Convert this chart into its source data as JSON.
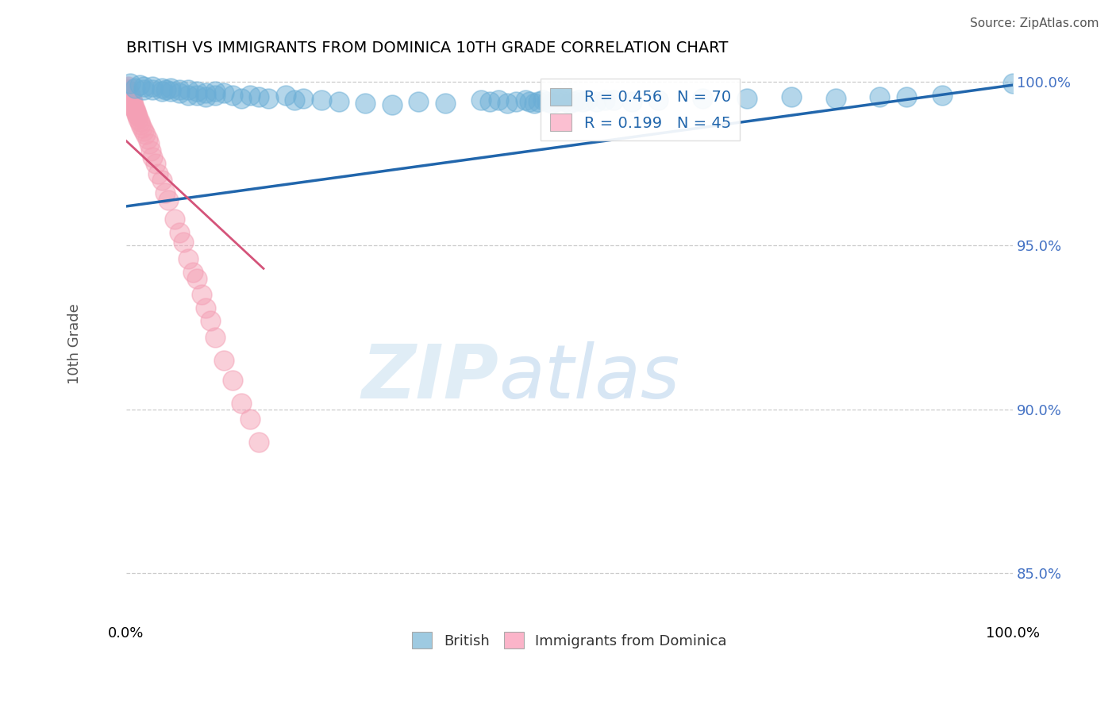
{
  "title": "BRITISH VS IMMIGRANTS FROM DOMINICA 10TH GRADE CORRELATION CHART",
  "source": "Source: ZipAtlas.com",
  "ylabel": "10th Grade",
  "watermark_zip": "ZIP",
  "watermark_atlas": "atlas",
  "british_R": 0.456,
  "british_N": 70,
  "dominica_R": 0.199,
  "dominica_N": 45,
  "british_color": "#6baed6",
  "dominica_color": "#f4a0b5",
  "british_line_color": "#2166ac",
  "dominica_line_color": "#d4547a",
  "grid_color": "#cccccc",
  "legend_box_color_british": "#9ecae1",
  "legend_box_color_dominica": "#fbb4c9",
  "tick_label_color": "#4472c4",
  "british_x": [
    0.005,
    0.01,
    0.015,
    0.02,
    0.02,
    0.03,
    0.03,
    0.04,
    0.04,
    0.045,
    0.05,
    0.05,
    0.06,
    0.06,
    0.07,
    0.07,
    0.08,
    0.08,
    0.09,
    0.09,
    0.1,
    0.1,
    0.11,
    0.12,
    0.13,
    0.14,
    0.15,
    0.16,
    0.18,
    0.19,
    0.2,
    0.22,
    0.24,
    0.27,
    0.3,
    0.33,
    0.36,
    0.4,
    0.41,
    0.42,
    0.43,
    0.44,
    0.45,
    0.455,
    0.46,
    0.465,
    0.47,
    0.475,
    0.48,
    0.485,
    0.49,
    0.495,
    0.5,
    0.505,
    0.51,
    0.515,
    0.52,
    0.53,
    0.54,
    0.55,
    0.57,
    0.6,
    0.65,
    0.7,
    0.75,
    0.8,
    0.85,
    0.88,
    0.92,
    1.0
  ],
  "british_y": [
    0.9995,
    0.998,
    0.999,
    0.9985,
    0.9975,
    0.9985,
    0.9975,
    0.998,
    0.997,
    0.9975,
    0.998,
    0.997,
    0.9975,
    0.9965,
    0.9975,
    0.996,
    0.997,
    0.996,
    0.9965,
    0.9955,
    0.997,
    0.996,
    0.9965,
    0.996,
    0.995,
    0.996,
    0.9955,
    0.995,
    0.996,
    0.9945,
    0.995,
    0.9945,
    0.994,
    0.9935,
    0.993,
    0.994,
    0.9935,
    0.9945,
    0.994,
    0.9945,
    0.9935,
    0.994,
    0.9945,
    0.994,
    0.9935,
    0.994,
    0.9945,
    0.994,
    0.9935,
    0.994,
    0.9945,
    0.994,
    0.9935,
    0.994,
    0.9945,
    0.994,
    0.9945,
    0.994,
    0.9945,
    0.9945,
    0.994,
    0.9945,
    0.995,
    0.995,
    0.9955,
    0.995,
    0.9955,
    0.9955,
    0.996,
    0.9995
  ],
  "dominica_x": [
    0.002,
    0.003,
    0.004,
    0.005,
    0.006,
    0.007,
    0.008,
    0.009,
    0.01,
    0.011,
    0.012,
    0.013,
    0.014,
    0.015,
    0.016,
    0.018,
    0.02,
    0.022,
    0.024,
    0.026,
    0.028,
    0.03,
    0.033,
    0.036,
    0.04,
    0.044,
    0.048,
    0.055,
    0.06,
    0.065,
    0.07,
    0.075,
    0.08,
    0.085,
    0.09,
    0.095,
    0.1,
    0.11,
    0.12,
    0.13,
    0.14,
    0.15,
    0.0,
    0.001,
    0.002
  ],
  "dominica_y": [
    0.9985,
    0.997,
    0.9965,
    0.996,
    0.9945,
    0.994,
    0.993,
    0.992,
    0.9915,
    0.991,
    0.99,
    0.9895,
    0.9885,
    0.988,
    0.987,
    0.986,
    0.985,
    0.984,
    0.9825,
    0.981,
    0.979,
    0.977,
    0.975,
    0.972,
    0.97,
    0.966,
    0.964,
    0.958,
    0.954,
    0.951,
    0.946,
    0.942,
    0.94,
    0.935,
    0.931,
    0.927,
    0.922,
    0.915,
    0.909,
    0.902,
    0.897,
    0.89,
    0.998,
    0.9975,
    0.997
  ],
  "xlim": [
    0.0,
    1.0
  ],
  "ylim": [
    0.835,
    1.005
  ],
  "yticks": [
    0.85,
    0.9,
    0.95,
    1.0
  ],
  "ytick_labels": [
    "85.0%",
    "90.0%",
    "95.0%",
    "100.0%"
  ],
  "xtick_positions": [
    0.0,
    1.0
  ],
  "xtick_labels": [
    "0.0%",
    "100.0%"
  ],
  "british_trend": [
    0.0,
    1.0,
    0.962,
    0.999
  ],
  "dominica_trend": [
    0.0,
    0.155,
    0.982,
    0.943
  ]
}
